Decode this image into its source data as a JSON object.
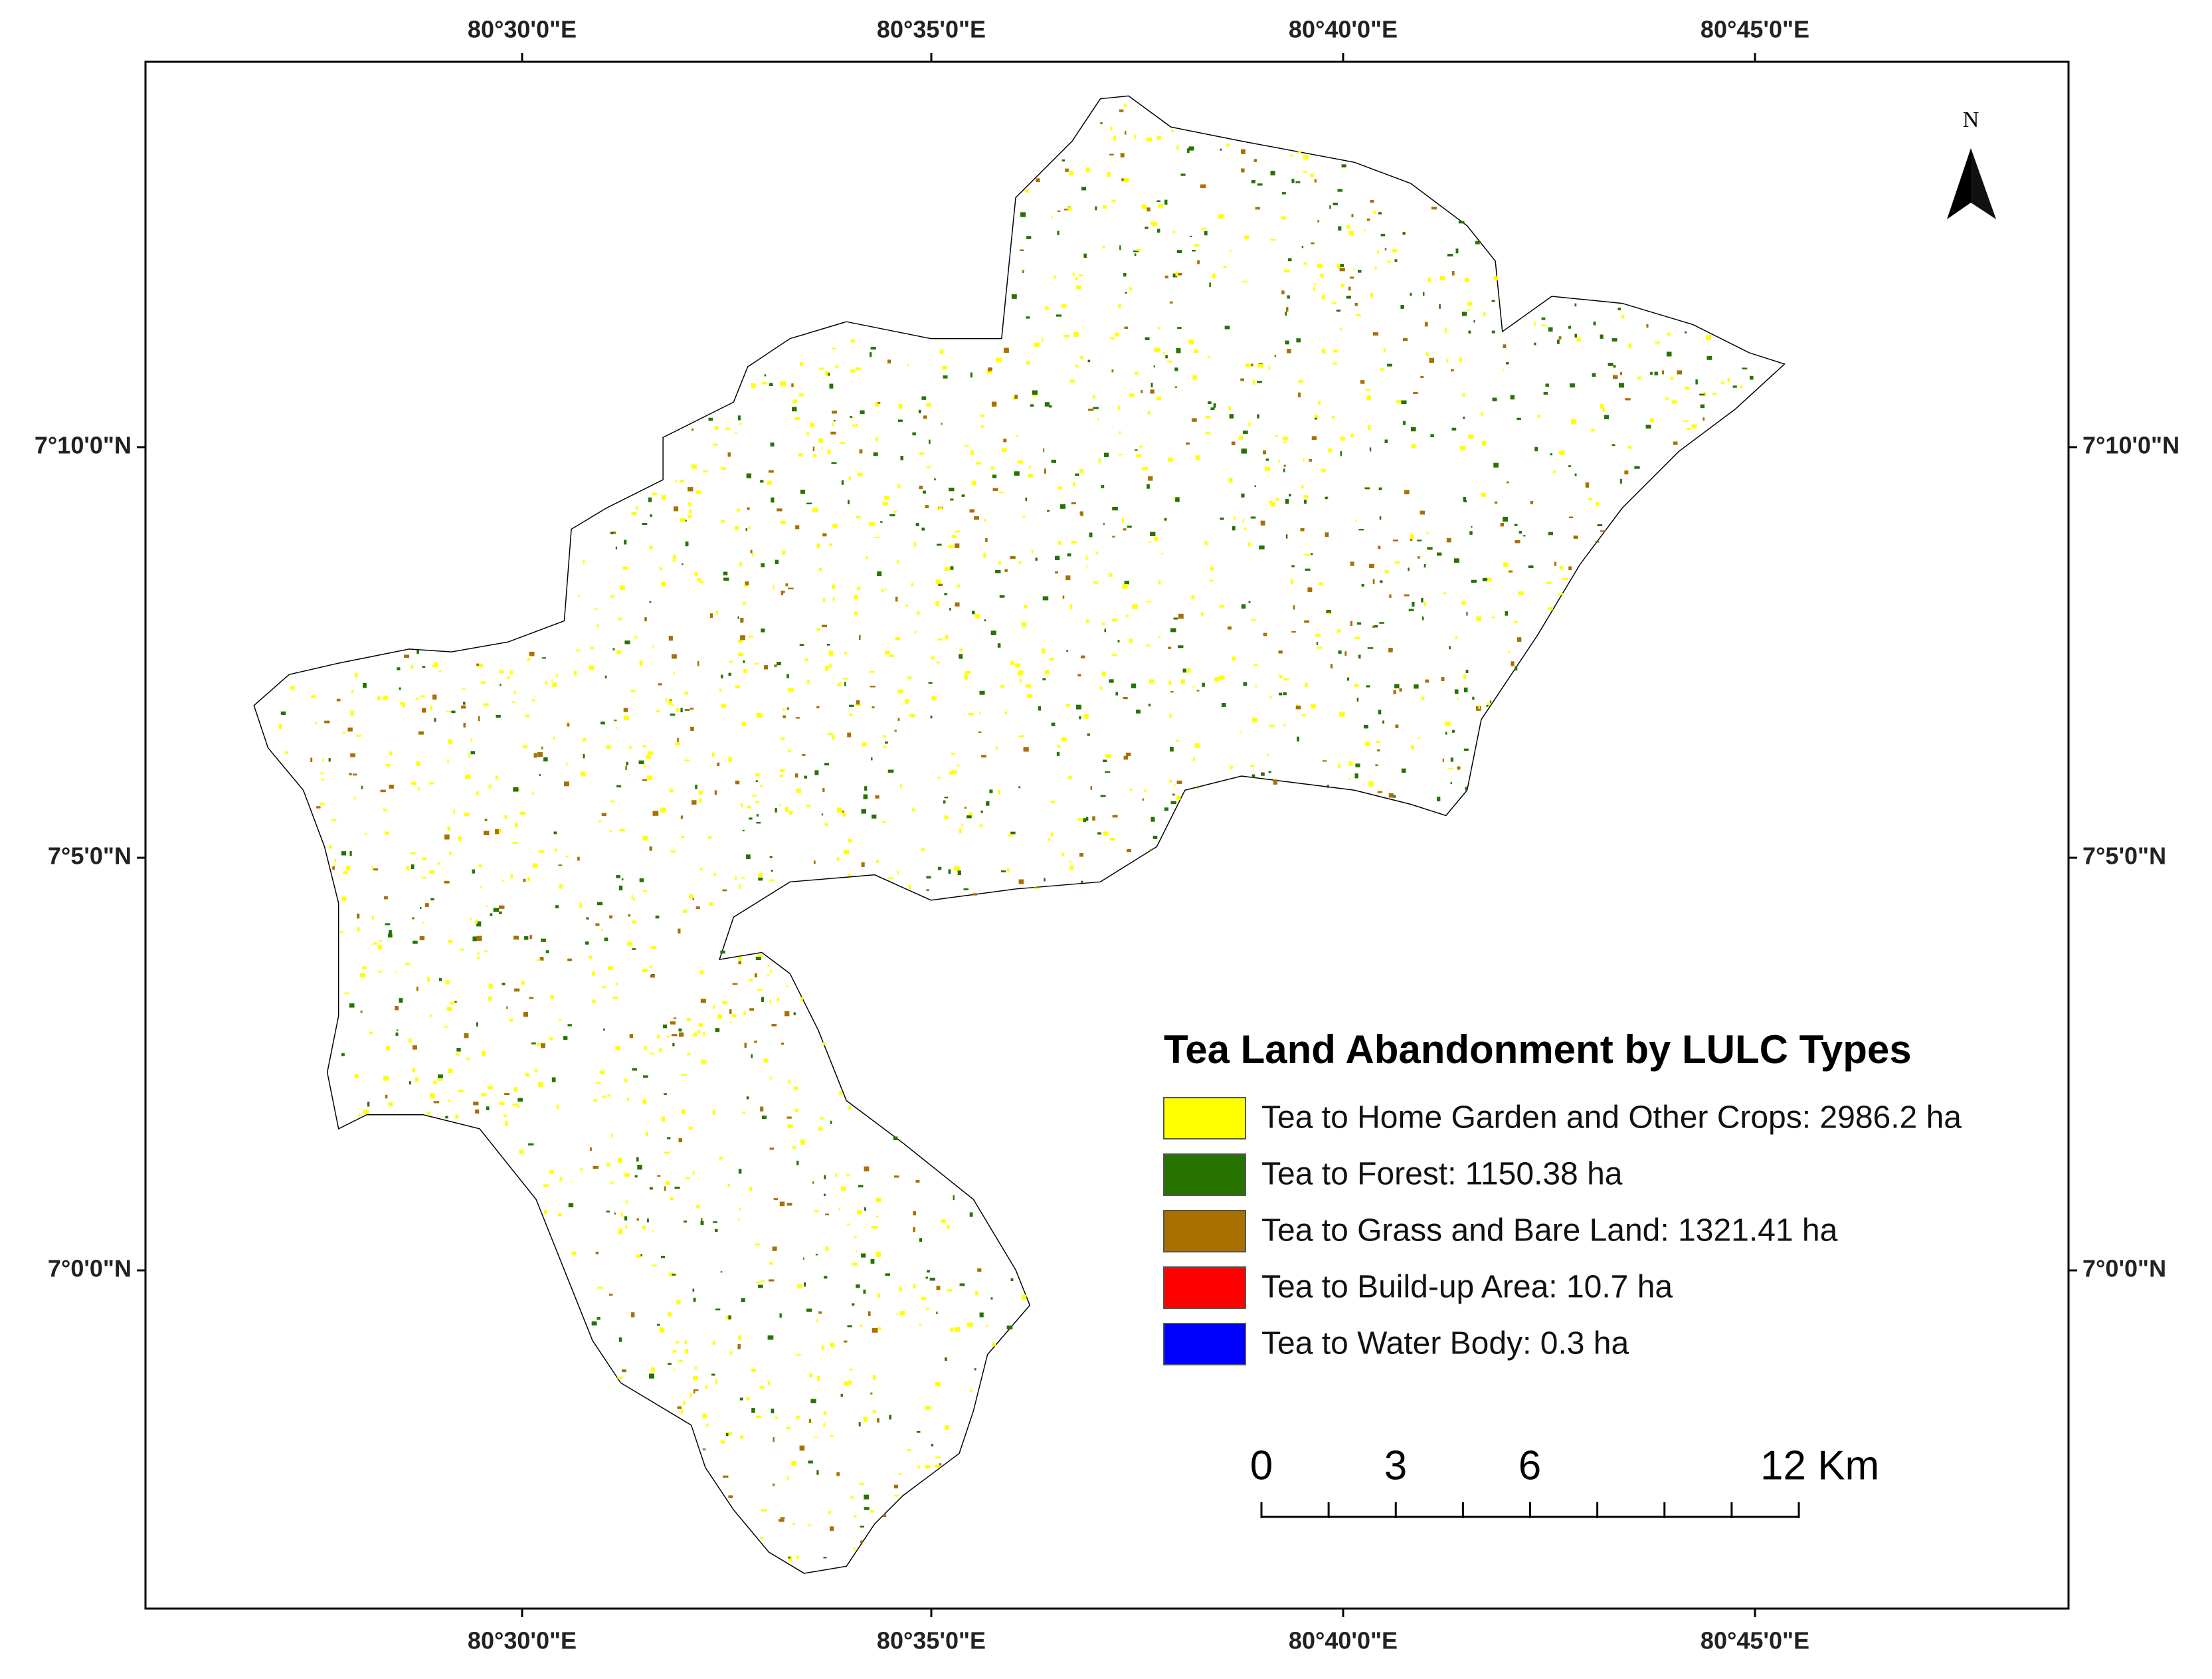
{
  "map": {
    "longitude_labels_top": [
      "80°30'0\"E",
      "80°35'0\"E",
      "80°40'0\"E",
      "80°45'0\"E"
    ],
    "longitude_labels_bottom": [
      "80°30'0\"E",
      "80°35'0\"E",
      "80°40'0\"E",
      "80°45'0\"E"
    ],
    "latitude_labels_left": [
      "7°10'0\"N",
      "7°5'0\"N",
      "7°0'0\"N"
    ],
    "latitude_labels_right": [
      "7°10'0\"N",
      "7°5'0\"N",
      "7°0'0\"N"
    ],
    "north_label": "N",
    "legend": {
      "title": "Tea Land Abandonment by LULC Types",
      "items": [
        {
          "label": "Tea to Home Garden and Other Crops: 2986.2 ha",
          "color": "#ffff00"
        },
        {
          "label": "Tea to Forest: 1150.38 ha",
          "color": "#267300"
        },
        {
          "label": "Tea to Grass and Bare Land: 1321.41 ha",
          "color": "#a87000"
        },
        {
          "label": "Tea to Build-up Area: 10.7 ha",
          "color": "#ff0000"
        },
        {
          "label": "Tea to Water Body: 0.3 ha",
          "color": "#0000ff"
        }
      ]
    },
    "scale_bar": {
      "labels": [
        "0",
        "3",
        "6",
        "12 Km"
      ]
    }
  }
}
